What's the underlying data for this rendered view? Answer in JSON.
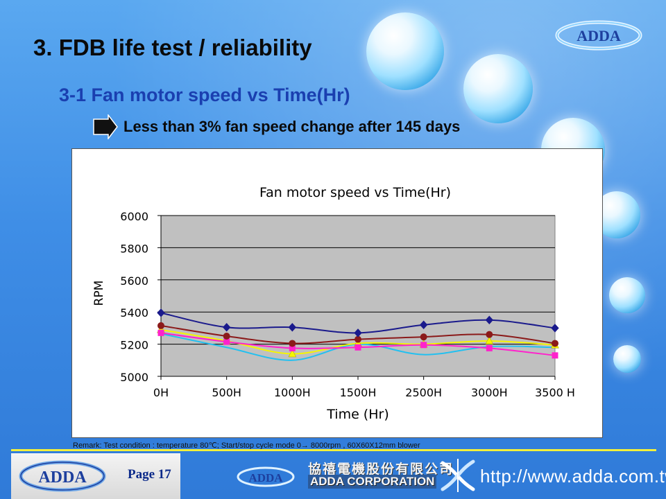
{
  "slide": {
    "title": "3. FDB life test / reliability",
    "subtitle": "3-1 Fan motor speed vs Time(Hr)",
    "bullet": "Less than 3% fan speed change after 145 days",
    "remark": "Remark: Test condition : temperature 80℃; Start/stop cycle mode 0→ 8000rpm , 60X60X12mm blower",
    "logo_text": "ADDA"
  },
  "footer": {
    "page_label": "Page 17",
    "logo_text": "ADDA",
    "corp_cn": "協禧電機股份有限公司",
    "corp_en": "ADDA CORPORATION",
    "url": "http://www.adda.com.tw"
  },
  "colors": {
    "plot_bg": "#c0c0c0",
    "navy": "#1a1a8c",
    "maroon": "#8b1a1a",
    "magenta": "#ff22cc",
    "yellow": "#f5f500",
    "cyan": "#22c0f0"
  },
  "chart_data": {
    "type": "line",
    "title": "Fan motor speed vs Time(Hr)",
    "xlabel": "Time (Hr)",
    "ylabel": "RPM",
    "categories": [
      "0H",
      "500H",
      "1000H",
      "1500H",
      "2500H",
      "3000H",
      "3500 H"
    ],
    "ylim": [
      5000,
      6000
    ],
    "yticks": [
      "5000",
      "5200",
      "5400",
      "5600",
      "5800",
      "6000"
    ],
    "grid": true,
    "legend": "none",
    "series": [
      {
        "marker": "diamond",
        "color": "#1a1a8c",
        "values": [
          5395,
          5305,
          5305,
          5270,
          5320,
          5350,
          5300
        ]
      },
      {
        "marker": "circle",
        "color": "#8b1a1a",
        "values": [
          5315,
          5250,
          5205,
          5230,
          5245,
          5260,
          5205
        ]
      },
      {
        "marker": "square",
        "color": "#ff22cc",
        "values": [
          5270,
          5215,
          5175,
          5180,
          5195,
          5175,
          5130
        ]
      },
      {
        "marker": "triangle",
        "color": "#f5f500",
        "values": [
          5290,
          5220,
          5140,
          5205,
          5200,
          5220,
          5195
        ]
      },
      {
        "marker": "none",
        "color": "#22c0f0",
        "values": [
          5265,
          5180,
          5100,
          5200,
          5135,
          5185,
          5180
        ]
      }
    ]
  }
}
